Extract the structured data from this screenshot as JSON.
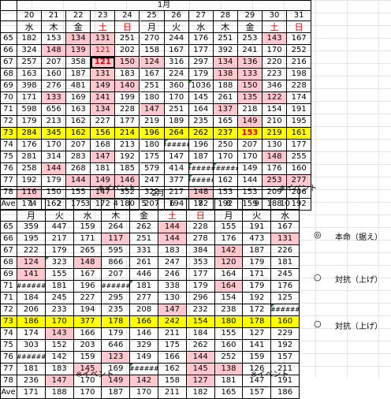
{
  "tables": [
    {
      "id": "jan",
      "month": "1月",
      "days": [
        "20",
        "21",
        "22",
        "23",
        "24",
        "25",
        "26",
        "27",
        "28",
        "29",
        "30",
        "31"
      ],
      "weekdays": [
        "水",
        "木",
        "金",
        "土",
        "日",
        "月",
        "火",
        "水",
        "木",
        "金",
        "土",
        "日"
      ],
      "red_weekdays": [
        3,
        4,
        10,
        11
      ],
      "rows": [
        {
          "label": "65",
          "values": [
            "182",
            "153",
            "134",
            "131",
            "251",
            "270",
            "244",
            "176",
            "251",
            "253",
            "143",
            "167"
          ]
        },
        {
          "label": "66",
          "values": [
            "324",
            "148",
            "139",
            "121",
            "202",
            "158",
            "167",
            "177",
            "392",
            "241",
            "170",
            "252"
          ]
        },
        {
          "label": "67",
          "values": [
            "257",
            "207",
            "358",
            "121",
            "150",
            "124",
            "316",
            "297",
            "134",
            "136",
            "220",
            "216"
          ]
        },
        {
          "label": "68",
          "values": [
            "163",
            "160",
            "187",
            "131",
            "183",
            "167",
            "224",
            "179",
            "138",
            "133",
            "223",
            "198"
          ]
        },
        {
          "label": "69",
          "values": [
            "398",
            "276",
            "481",
            "149",
            "140",
            "251",
            "360",
            "1036",
            "188",
            "150",
            "346",
            "228"
          ]
        },
        {
          "label": "70",
          "values": [
            "171",
            "133",
            "169",
            "141",
            "199",
            "180",
            "170",
            "145",
            "261",
            "135",
            "122",
            "174"
          ]
        },
        {
          "label": "71",
          "values": [
            "598",
            "656",
            "163",
            "134",
            "228",
            "147",
            "251",
            "164",
            "137",
            "218",
            "154",
            "191"
          ]
        },
        {
          "label": "72",
          "values": [
            "179",
            "213",
            "162",
            "227",
            "177",
            "219",
            "189",
            "235",
            "165",
            "149",
            "210",
            "195"
          ]
        },
        {
          "label": "73",
          "values": [
            "284",
            "345",
            "162",
            "156",
            "214",
            "196",
            "264",
            "262",
            "237",
            "153",
            "219",
            "161"
          ]
        },
        {
          "label": "74",
          "values": [
            "176",
            "170",
            "207",
            "168",
            "213",
            "180",
            "######",
            "196",
            "250",
            "207",
            "130",
            "177"
          ]
        },
        {
          "label": "75",
          "values": [
            "281",
            "314",
            "283",
            "147",
            "192",
            "175",
            "147",
            "187",
            "170",
            "170",
            "148",
            "255"
          ]
        },
        {
          "label": "76",
          "values": [
            "258",
            "144",
            "268",
            "181",
            "185",
            "579",
            "414",
            "######",
            "######",
            "149",
            "176",
            "160"
          ]
        },
        {
          "label": "77",
          "values": [
            "192",
            "179",
            "144",
            "149",
            "146",
            "247",
            "377",
            "######",
            "162",
            "144",
            "253",
            "277"
          ]
        },
        {
          "label": "78",
          "values": [
            "116",
            "150",
            "155",
            "147",
            "352",
            "322",
            "217",
            "148",
            "153",
            "153",
            "209",
            "206"
          ]
        },
        {
          "label": "Ave",
          "values": [
            "174",
            "162",
            "175",
            "172",
            "180",
            "207",
            "194",
            "182",
            "192",
            "159",
            "188",
            "192"
          ]
        }
      ],
      "pink": [
        [
          0,
          2
        ],
        [
          0,
          3
        ],
        [
          0,
          10
        ],
        [
          1,
          1
        ],
        [
          1,
          2
        ],
        [
          1,
          3
        ],
        [
          2,
          3
        ],
        [
          2,
          4
        ],
        [
          2,
          5
        ],
        [
          2,
          8
        ],
        [
          2,
          9
        ],
        [
          3,
          3
        ],
        [
          3,
          8
        ],
        [
          3,
          9
        ],
        [
          4,
          3
        ],
        [
          4,
          4
        ],
        [
          4,
          9
        ],
        [
          5,
          1
        ],
        [
          5,
          3
        ],
        [
          5,
          9
        ],
        [
          5,
          10
        ],
        [
          6,
          3
        ],
        [
          6,
          5
        ],
        [
          6,
          8
        ],
        [
          7,
          9
        ],
        [
          10,
          3
        ],
        [
          10,
          10
        ],
        [
          11,
          1
        ],
        [
          12,
          2
        ],
        [
          12,
          3
        ],
        [
          12,
          4
        ],
        [
          12,
          10
        ],
        [
          12,
          11
        ],
        [
          13,
          0
        ],
        [
          13,
          3
        ],
        [
          13,
          7
        ]
      ],
      "red_cells": [
        [
          1,
          3
        ],
        [
          2,
          3
        ],
        [
          8,
          9
        ]
      ],
      "bold_cells": [
        [
          2,
          3
        ],
        [
          8,
          9
        ]
      ],
      "thick_cells": [
        [
          2,
          3
        ]
      ],
      "corner_cells": [
        [
          4,
          7
        ],
        [
          9,
          6
        ],
        [
          11,
          7
        ],
        [
          11,
          8
        ],
        [
          12,
          7
        ]
      ],
      "highlight_row": 8,
      "notes": [
        "※イベント",
        "※イベント"
      ]
    },
    {
      "id": "feb",
      "month": "2月",
      "days": [
        "1",
        "2",
        "3",
        "4",
        "5",
        "6",
        "7",
        "8",
        "9",
        "10"
      ],
      "weekdays": [
        "月",
        "火",
        "水",
        "木",
        "金",
        "土",
        "日",
        "月",
        "火",
        "水"
      ],
      "red_weekdays": [
        5,
        6
      ],
      "rows": [
        {
          "label": "65",
          "values": [
            "359",
            "447",
            "159",
            "264",
            "262",
            "144",
            "228",
            "155",
            "191",
            "167"
          ]
        },
        {
          "label": "66",
          "values": [
            "195",
            "217",
            "171",
            "117",
            "251",
            "144",
            "278",
            "176",
            "473",
            "131"
          ]
        },
        {
          "label": "67",
          "values": [
            "222",
            "179",
            "265",
            "595",
            "331",
            "183",
            "384",
            "142",
            "187",
            "226"
          ]
        },
        {
          "label": "68",
          "values": [
            "124",
            "323",
            "148",
            "866",
            "261",
            "247",
            "353",
            "120",
            "179",
            "181"
          ]
        },
        {
          "label": "69",
          "values": [
            "141",
            "155",
            "167",
            "207",
            "446",
            "246",
            "177",
            "164",
            "171",
            "245"
          ]
        },
        {
          "label": "71",
          "values": [
            "######",
            "181",
            "196",
            "######",
            "181",
            "338",
            "179",
            "164",
            "179",
            "176"
          ]
        },
        {
          "label": "71",
          "values": [
            "184",
            "245",
            "227",
            "295",
            "277",
            "130",
            "296",
            "154",
            "192",
            "125"
          ]
        },
        {
          "label": "72",
          "values": [
            "206",
            "233",
            "194",
            "235",
            "208",
            "147",
            "232",
            "238",
            "172",
            "######"
          ]
        },
        {
          "label": "73",
          "values": [
            "186",
            "170",
            "377",
            "178",
            "166",
            "242",
            "154",
            "180",
            "178",
            "160"
          ]
        },
        {
          "label": "74",
          "values": [
            "174",
            "143",
            "166",
            "179",
            "146",
            "211",
            "184",
            "155",
            "127",
            "229"
          ]
        },
        {
          "label": "75",
          "values": [
            "303",
            "152",
            "203",
            "646",
            "329",
            "175",
            "262",
            "160",
            "141",
            "192"
          ]
        },
        {
          "label": "76",
          "values": [
            "######",
            "142",
            "159",
            "123",
            "149",
            "166",
            "144",
            "252",
            "159",
            "157"
          ]
        },
        {
          "label": "77",
          "values": [
            "181",
            "183",
            "145",
            "169",
            "######",
            "162",
            "145",
            "138",
            "126",
            "211"
          ]
        },
        {
          "label": "78",
          "values": [
            "236",
            "147",
            "170",
            "149",
            "142",
            "158",
            "127",
            "181",
            "147",
            "191"
          ]
        },
        {
          "label": "Ave",
          "values": [
            "171",
            "188",
            "170",
            "187",
            "170",
            "211",
            "182",
            "165",
            "157",
            "186"
          ]
        }
      ],
      "pink": [
        [
          0,
          5
        ],
        [
          1,
          3
        ],
        [
          1,
          5
        ],
        [
          1,
          9
        ],
        [
          2,
          7
        ],
        [
          3,
          0
        ],
        [
          3,
          2
        ],
        [
          3,
          7
        ],
        [
          4,
          0
        ],
        [
          5,
          7
        ],
        [
          7,
          5
        ],
        [
          9,
          1
        ],
        [
          11,
          3
        ],
        [
          11,
          6
        ],
        [
          12,
          2
        ],
        [
          12,
          6
        ],
        [
          12,
          7
        ],
        [
          13,
          1
        ],
        [
          13,
          3
        ],
        [
          13,
          4
        ],
        [
          13,
          6
        ]
      ],
      "red_cells": [],
      "bold_cells": [],
      "thick_cells": [],
      "corner_cells": [
        [
          3,
          1
        ],
        [
          5,
          4
        ],
        [
          7,
          9
        ],
        [
          12,
          4
        ]
      ],
      "highlight_row": 8,
      "notes": [
        "※イベント",
        "※イベント"
      ]
    }
  ],
  "legend": [
    {
      "icon": "◎",
      "label": "本命（据え）",
      "icon_name": "double-circle-icon"
    },
    {
      "icon": "○",
      "label": "対抗（上げ）",
      "icon_name": "circle-icon"
    },
    {
      "icon": "○",
      "label": "対抗（上げ）",
      "icon_name": "circle-icon"
    }
  ],
  "colors": {
    "highlight": "#ffff00",
    "pink": "#ffc7ce",
    "red_text": "#e00000",
    "corner": "#2e7d32"
  }
}
